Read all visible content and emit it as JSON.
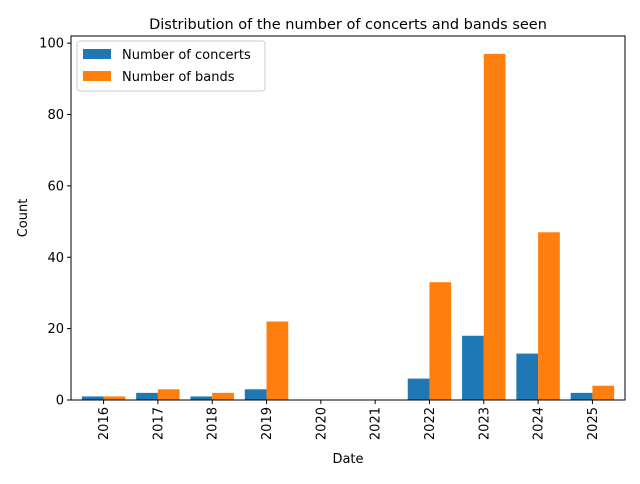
{
  "chart_data": {
    "type": "bar",
    "title": "Distribution of the number of concerts and bands seen",
    "xlabel": "Date",
    "ylabel": "Count",
    "categories": [
      "2016",
      "2017",
      "2018",
      "2019",
      "2020",
      "2021",
      "2022",
      "2023",
      "2024",
      "2025"
    ],
    "series": [
      {
        "name": "Number of concerts",
        "color": "#1f77b4",
        "values": [
          1,
          2,
          1,
          3,
          0,
          0,
          6,
          18,
          13,
          2
        ]
      },
      {
        "name": "Number of bands",
        "color": "#ff7f0e",
        "values": [
          1,
          3,
          2,
          22,
          0,
          0,
          33,
          97,
          47,
          4
        ]
      }
    ],
    "ylim": [
      0,
      102
    ],
    "yticks": [
      0,
      20,
      40,
      60,
      80,
      100
    ],
    "grid": false,
    "legend_position": "top-left"
  }
}
